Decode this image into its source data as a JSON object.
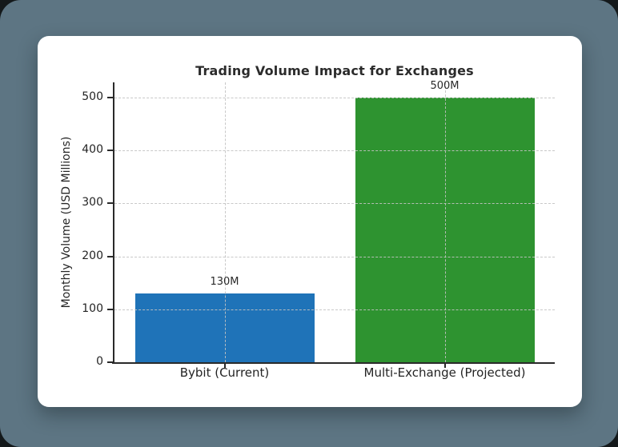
{
  "frame": {
    "outer_background": "#14191b",
    "backdrop_background": "#5d7583",
    "card_background": "#ffffff"
  },
  "chart_data": {
    "type": "bar",
    "title": "Trading Volume Impact for Exchanges",
    "xlabel": "",
    "ylabel": "Monthly Volume (USD Millions)",
    "categories": [
      "Bybit (Current)",
      "Multi-Exchange (Projected)"
    ],
    "values": [
      130,
      500
    ],
    "bar_value_labels": [
      "130M",
      "500M"
    ],
    "bar_colors": [
      "#1f73b8",
      "#2e9330"
    ],
    "yticks": [
      0,
      100,
      200,
      300,
      400,
      500
    ],
    "ylim": [
      0,
      530
    ],
    "grid": "dashed horizontal lines at y ticks and dashed vertical lines at bar centers, drawn over bars",
    "legend": "none",
    "axis_color": "#2a2a2a",
    "grid_color": "#c3c3c3"
  }
}
